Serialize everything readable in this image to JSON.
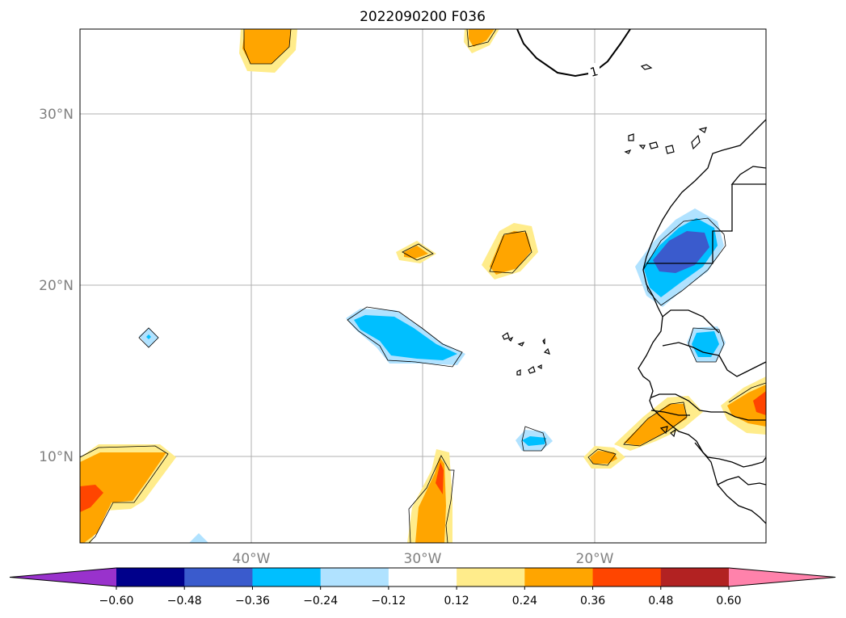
{
  "title": "2022090200 F036",
  "map": {
    "lat_labels": [
      "30°N",
      "20°N",
      "10°N"
    ],
    "lon_labels": [
      "40°W",
      "30°W",
      "20°W"
    ],
    "contour_label": "1"
  },
  "colorbar": {
    "ticks": [
      "−0.60",
      "−0.48",
      "−0.36",
      "−0.24",
      "−0.12",
      "0.12",
      "0.24",
      "0.36",
      "0.48",
      "0.60"
    ],
    "colors": [
      "#9932cc",
      "#00008b",
      "#3a5bcd",
      "#00bfff",
      "#b0e2ff",
      "#ffffff",
      "#ffec8b",
      "#ffa500",
      "#ff4500",
      "#b22222",
      "#ff82ab"
    ]
  }
}
